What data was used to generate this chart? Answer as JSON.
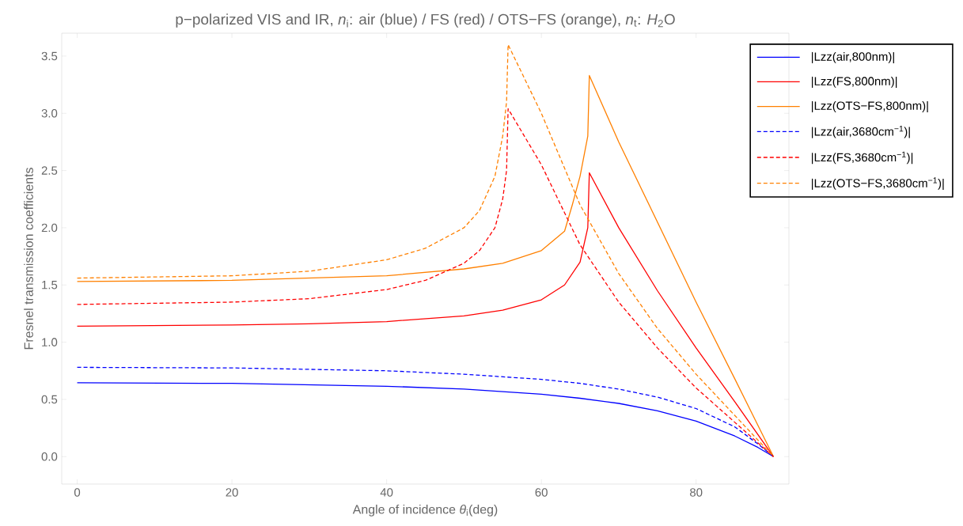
{
  "chart_data": {
    "type": "line",
    "title": "p−polarized VIS and IR, *n*$_{i}$: air (blue) / FS (red) / OTS−FS (orange), *n*$_{t}$: *H*$_{2}$O",
    "xlabel": "Angle of incidence *θ*$_{i}$(deg)",
    "ylabel": "Fresnel transmission coefficients",
    "xlim": [
      -2,
      92
    ],
    "ylim": [
      -0.24,
      3.7
    ],
    "xticks": [
      0,
      20,
      40,
      60,
      80
    ],
    "yticks": [
      {
        "value": 0,
        "label": "0.0"
      },
      {
        "value": 0.5,
        "label": "0.5"
      },
      {
        "value": 1,
        "label": "1.0"
      },
      {
        "value": 1.5,
        "label": "1.5"
      },
      {
        "value": 2,
        "label": "2.0"
      },
      {
        "value": 2.5,
        "label": "2.5"
      },
      {
        "value": 3,
        "label": "3.0"
      },
      {
        "value": 3.5,
        "label": "3.5"
      }
    ],
    "grid": false,
    "legend": "top right",
    "marker": "none",
    "series": [
      {
        "name": "|Lzz(air,800nm)|",
        "color": "#0000ff",
        "line_style": "solid",
        "x": [
          0,
          20,
          40,
          50,
          60,
          65,
          70,
          75,
          80,
          85,
          88,
          90
        ],
        "values": [
          0.645,
          0.64,
          0.615,
          0.59,
          0.545,
          0.51,
          0.465,
          0.4,
          0.31,
          0.18,
          0.08,
          0
        ]
      },
      {
        "name": "|Lzz(FS,800nm)|",
        "color": "#ff0000",
        "line_style": "solid",
        "x": [
          0,
          20,
          30,
          40,
          50,
          55,
          60,
          63,
          65,
          66,
          66.2,
          70,
          75,
          80,
          85,
          90
        ],
        "values": [
          1.14,
          1.15,
          1.16,
          1.18,
          1.23,
          1.28,
          1.37,
          1.5,
          1.7,
          2.0,
          2.48,
          2.0,
          1.45,
          0.95,
          0.48,
          0
        ]
      },
      {
        "name": "|Lzz(OTS−FS,800nm)|",
        "color": "#ff8000",
        "line_style": "solid",
        "x": [
          0,
          20,
          40,
          50,
          55,
          60,
          63,
          64,
          65,
          66,
          66.2,
          70,
          75,
          80,
          85,
          90
        ],
        "values": [
          1.53,
          1.54,
          1.58,
          1.64,
          1.69,
          1.8,
          1.97,
          2.2,
          2.45,
          2.8,
          3.33,
          2.75,
          2.05,
          1.35,
          0.68,
          0
        ]
      },
      {
        "name": "|Lzz(air,3680cm$^{−1}$)|",
        "color": "#0000ff",
        "line_style": "dashed",
        "x": [
          0,
          20,
          40,
          50,
          60,
          65,
          70,
          75,
          80,
          85,
          88,
          90
        ],
        "values": [
          0.78,
          0.775,
          0.75,
          0.72,
          0.675,
          0.64,
          0.59,
          0.52,
          0.42,
          0.26,
          0.11,
          0
        ]
      },
      {
        "name": "|Lzz(FS,3680cm$^{−1}$)|",
        "color": "#ff0000",
        "line_style": "dashed",
        "x": [
          0,
          20,
          30,
          40,
          45,
          50,
          52,
          54,
          55,
          55.5,
          55.7,
          60,
          65,
          70,
          75,
          80,
          85,
          90
        ],
        "values": [
          1.33,
          1.35,
          1.38,
          1.46,
          1.54,
          1.69,
          1.8,
          2.0,
          2.25,
          2.5,
          3.04,
          2.55,
          1.85,
          1.35,
          0.95,
          0.6,
          0.3,
          0
        ]
      },
      {
        "name": "|Lzz(OTS−FS,3680cm$^{−1}$)|",
        "color": "#ff8000",
        "line_style": "dashed",
        "x": [
          0,
          20,
          30,
          40,
          45,
          50,
          52,
          54,
          55,
          55.5,
          55.7,
          60,
          65,
          70,
          75,
          80,
          85,
          90
        ],
        "values": [
          1.56,
          1.58,
          1.62,
          1.72,
          1.82,
          2.0,
          2.15,
          2.45,
          2.8,
          3.1,
          3.6,
          3.0,
          2.2,
          1.6,
          1.12,
          0.72,
          0.36,
          0
        ]
      }
    ]
  }
}
